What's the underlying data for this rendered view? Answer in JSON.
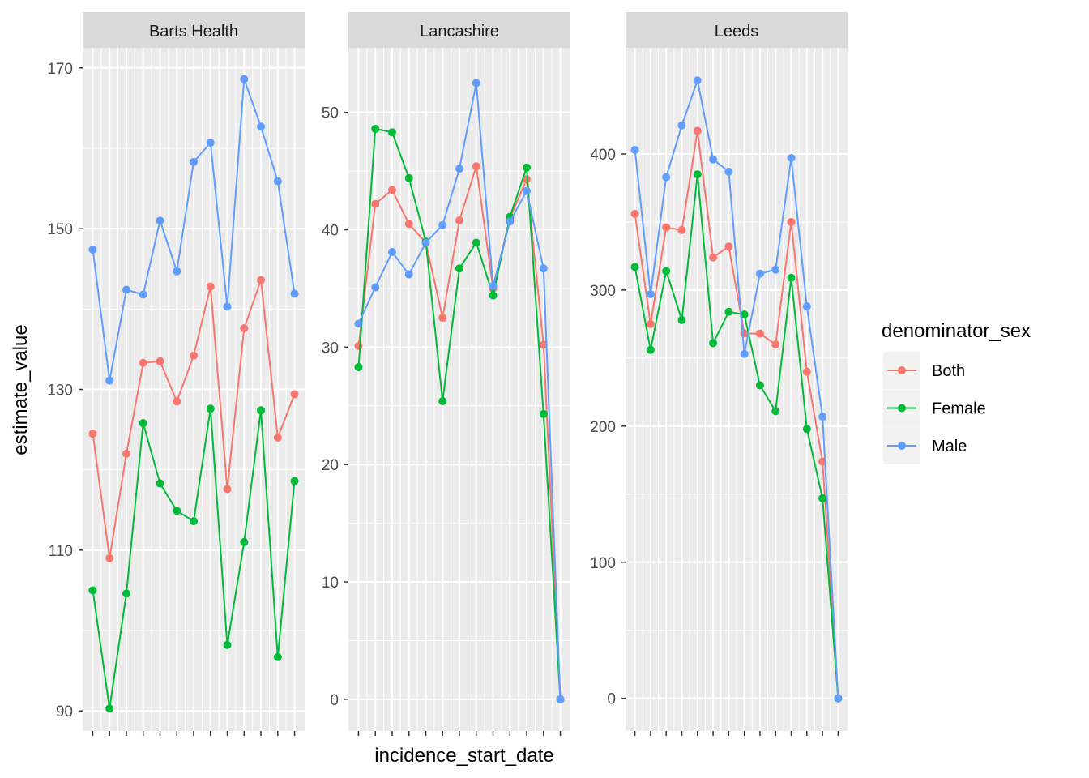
{
  "chart_data": {
    "type": "line",
    "facet_by": "facet",
    "xlabel": "incidence_start_date",
    "ylabel": "estimate_value",
    "legend": {
      "title": "denominator_sex",
      "position": "right",
      "entries": [
        "Both",
        "Female",
        "Male"
      ]
    },
    "colors": {
      "Both": "#F8766D",
      "Female": "#00BA38",
      "Male": "#619CFF"
    },
    "x_tick_labels_shown": false,
    "grid": true,
    "panels": [
      {
        "title": "Barts Health",
        "y_ticks": [
          90,
          110,
          130,
          150,
          170
        ],
        "ylim": [
          87.5,
          172.5
        ],
        "series": [
          {
            "name": "Both",
            "values": [
              124.5,
              109,
              122,
              133.3,
              133.5,
              128.5,
              134.2,
              142.8,
              117.6,
              137.6,
              143.6,
              124,
              129.4
            ]
          },
          {
            "name": "Female",
            "values": [
              105,
              90.3,
              104.6,
              125.8,
              118.3,
              114.9,
              113.6,
              127.6,
              98.2,
              111,
              127.4,
              96.7,
              118.6
            ]
          },
          {
            "name": "Male",
            "values": [
              147.4,
              131.1,
              142.4,
              141.8,
              151,
              144.7,
              158.3,
              160.7,
              140.3,
              168.6,
              162.7,
              155.9,
              141.9
            ]
          }
        ]
      },
      {
        "title": "Lancashire",
        "y_ticks": [
          0,
          10,
          20,
          30,
          40,
          50
        ],
        "ylim": [
          -2.7,
          55.5
        ],
        "series": [
          {
            "name": "Both",
            "values": [
              30.1,
              42.2,
              43.4,
              40.5,
              38.9,
              32.5,
              40.8,
              45.4,
              35,
              41,
              44.3,
              30.2,
              0
            ]
          },
          {
            "name": "Female",
            "values": [
              28.3,
              48.6,
              48.3,
              44.4,
              39,
              25.4,
              36.7,
              38.9,
              34.4,
              41.1,
              45.3,
              24.3,
              0
            ]
          },
          {
            "name": "Male",
            "values": [
              32,
              35.1,
              38.1,
              36.2,
              38.9,
              40.4,
              45.2,
              52.5,
              35.2,
              40.7,
              43.3,
              36.7,
              0
            ]
          }
        ]
      },
      {
        "title": "Leeds",
        "y_ticks": [
          0,
          100,
          200,
          300,
          400
        ],
        "ylim": [
          -24,
          478
        ],
        "series": [
          {
            "name": "Both",
            "values": [
              356,
              275,
              346,
              344,
              417,
              324,
              332,
              268,
              268,
              260,
              350,
              240,
              174,
              0
            ]
          },
          {
            "name": "Female",
            "values": [
              317,
              256,
              314,
              278,
              385,
              261,
              284,
              282,
              230,
              211,
              309,
              198,
              147,
              0
            ]
          },
          {
            "name": "Male",
            "values": [
              403,
              297,
              383,
              421,
              454,
              396,
              387,
              253,
              312,
              315,
              397,
              288,
              207,
              0
            ]
          }
        ]
      }
    ]
  }
}
